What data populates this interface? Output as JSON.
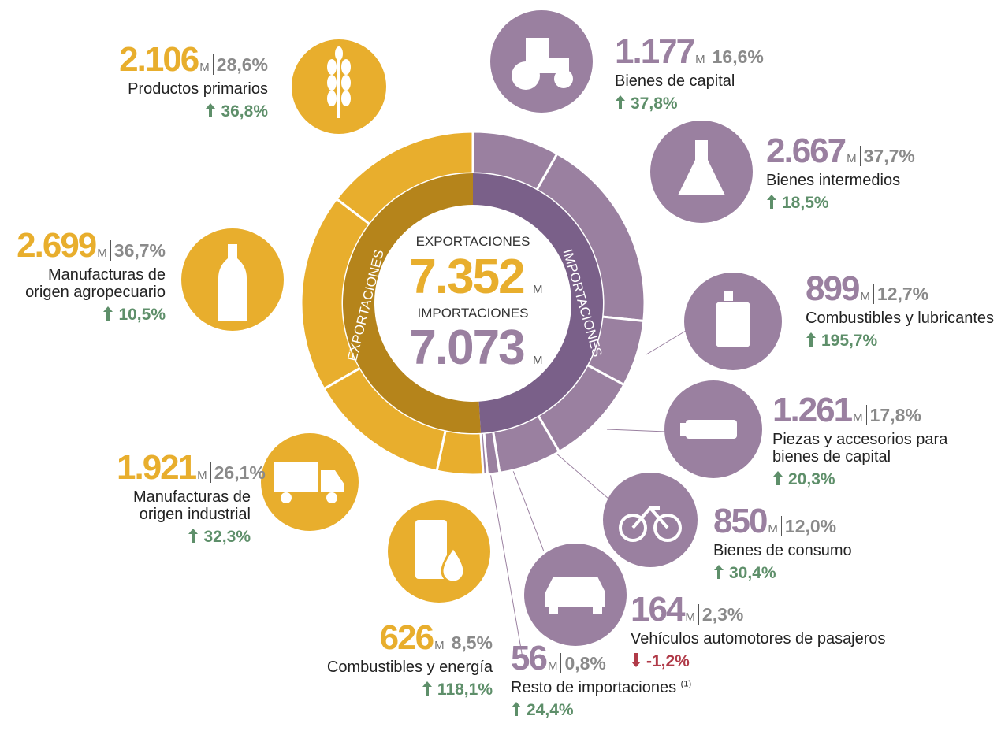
{
  "chart_data": {
    "type": "donut",
    "unit": "M",
    "exports": {
      "name": "EXPORTACIONES",
      "total": 7352,
      "total_label": "7.352",
      "color": "#E8AE2D",
      "inner_color": "#B5841B",
      "categories": [
        "Productos primarios",
        "Manufacturas de origen agropecuario",
        "Manufacturas de origen industrial",
        "Combustibles y energía"
      ],
      "values": [
        2106,
        2699,
        1921,
        626
      ],
      "value_labels": [
        "2.106",
        "2.699",
        "1.921",
        "626"
      ],
      "shares": [
        28.6,
        36.7,
        26.1,
        8.5
      ],
      "share_labels": [
        "28,6%",
        "36,7%",
        "26,1%",
        "8,5%"
      ],
      "changes": [
        36.8,
        10.5,
        32.3,
        118.1
      ],
      "change_labels": [
        "36,8%",
        "10,5%",
        "32,3%",
        "118,1%"
      ]
    },
    "imports": {
      "name": "IMPORTACIONES",
      "total": 7073,
      "total_label": "7.073",
      "color": "#9A80A0",
      "inner_color": "#7A6089",
      "categories": [
        "Bienes de capital",
        "Bienes intermedios",
        "Combustibles y lubricantes",
        "Piezas y accesorios para bienes de capital",
        "Bienes de consumo",
        "Vehículos automotores de pasajeros",
        "Resto de importaciones"
      ],
      "notes": [
        null,
        null,
        null,
        null,
        null,
        null,
        "(1)"
      ],
      "values": [
        1177,
        2667,
        899,
        1261,
        850,
        164,
        56
      ],
      "value_labels": [
        "1.177",
        "2.667",
        "899",
        "1.261",
        "850",
        "164",
        "56"
      ],
      "shares": [
        16.6,
        37.7,
        12.7,
        17.8,
        12.0,
        2.3,
        0.8
      ],
      "share_labels": [
        "16,6%",
        "37,7%",
        "12,7%",
        "17,8%",
        "12,0%",
        "2,3%",
        "0,8%"
      ],
      "changes": [
        37.8,
        18.5,
        195.7,
        20.3,
        30.4,
        -1.2,
        24.4
      ],
      "change_labels": [
        "37,8%",
        "18,5%",
        "195,7%",
        "20,3%",
        "30,4%",
        "-1,2%",
        "24,4%"
      ]
    }
  }
}
